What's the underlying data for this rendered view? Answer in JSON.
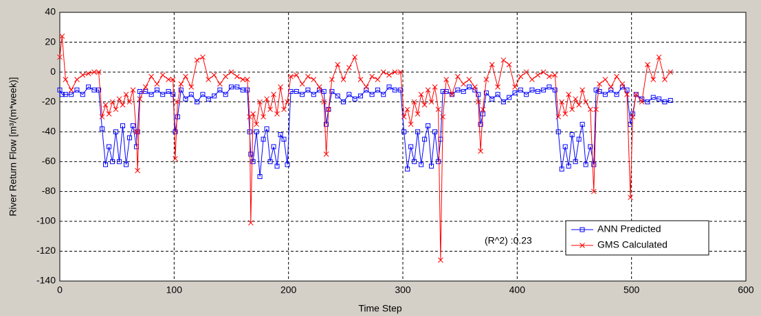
{
  "chart_data": {
    "type": "line",
    "x_label": "Time Step",
    "y_label": "River Return Flow [m³/(m*week)]",
    "annotation": "(R^2) :0.23",
    "xlim": [
      0,
      600
    ],
    "xticks": [
      0,
      100,
      200,
      300,
      400,
      500,
      600
    ],
    "ylim": [
      -140,
      40
    ],
    "yticks": [
      -140,
      -120,
      -100,
      -80,
      -60,
      -40,
      -20,
      0,
      20,
      40
    ],
    "grid": true,
    "legend": "lower right",
    "x": [
      0,
      2,
      5,
      10,
      15,
      20,
      25,
      30,
      34,
      37,
      40,
      43,
      46,
      49,
      52,
      55,
      58,
      61,
      64,
      67,
      68,
      70,
      75,
      80,
      85,
      90,
      95,
      99,
      101,
      103,
      106,
      110,
      115,
      120,
      125,
      130,
      135,
      140,
      145,
      150,
      155,
      160,
      164,
      166,
      167,
      169,
      172,
      175,
      178,
      181,
      184,
      187,
      190,
      193,
      196,
      199,
      202,
      207,
      212,
      217,
      222,
      227,
      231,
      233,
      235,
      238,
      243,
      248,
      253,
      258,
      263,
      268,
      273,
      278,
      283,
      288,
      293,
      298,
      301,
      304,
      307,
      310,
      313,
      316,
      319,
      322,
      325,
      328,
      331,
      333,
      335,
      338,
      343,
      348,
      353,
      358,
      363,
      366,
      368,
      370,
      373,
      378,
      383,
      388,
      393,
      398,
      403,
      408,
      413,
      418,
      423,
      428,
      433,
      436,
      439,
      442,
      445,
      448,
      451,
      454,
      457,
      460,
      464,
      467,
      469,
      472,
      477,
      482,
      487,
      492,
      496,
      499,
      501,
      504,
      509,
      514,
      519,
      524,
      529,
      534
    ],
    "series": [
      {
        "name": "ANN Predicted",
        "color": "#0000ff",
        "marker": "square",
        "values": [
          -12,
          -15,
          -15,
          -15,
          -12,
          -15,
          -10,
          -12,
          -12,
          -38,
          -62,
          -50,
          -60,
          -40,
          -60,
          -36,
          -62,
          -44,
          -36,
          -50,
          -40,
          -13,
          -13,
          -15,
          -12,
          -15,
          -13,
          -15,
          -40,
          -30,
          -12,
          -18,
          -15,
          -20,
          -15,
          -18,
          -16,
          -12,
          -15,
          -10,
          -10,
          -12,
          -12,
          -40,
          -55,
          -60,
          -40,
          -70,
          -45,
          -38,
          -60,
          -50,
          -63,
          -42,
          -45,
          -62,
          -13,
          -13,
          -15,
          -12,
          -15,
          -12,
          -13,
          -35,
          -25,
          -13,
          -16,
          -20,
          -15,
          -18,
          -16,
          -12,
          -15,
          -12,
          -15,
          -10,
          -12,
          -12,
          -40,
          -65,
          -50,
          -60,
          -40,
          -62,
          -45,
          -36,
          -63,
          -40,
          -60,
          -45,
          -13,
          -13,
          -15,
          -12,
          -13,
          -10,
          -12,
          -15,
          -35,
          -28,
          -14,
          -18,
          -15,
          -20,
          -17,
          -14,
          -12,
          -15,
          -12,
          -13,
          -12,
          -10,
          -12,
          -40,
          -65,
          -50,
          -63,
          -42,
          -60,
          -45,
          -35,
          -62,
          -50,
          -62,
          -12,
          -13,
          -15,
          -12,
          -15,
          -10,
          -12,
          -35,
          -28,
          -15,
          -18,
          -20,
          -17,
          -18,
          -20,
          -19
        ]
      },
      {
        "name": "GMS Calculated",
        "color": "#ff0000",
        "marker": "x",
        "values": [
          10,
          24,
          -5,
          -12,
          -5,
          -2,
          -1,
          0,
          0,
          -30,
          -22,
          -28,
          -20,
          -25,
          -18,
          -22,
          -15,
          -20,
          -12,
          -40,
          -66,
          -18,
          -10,
          -3,
          -8,
          -2,
          -5,
          -5,
          -58,
          -20,
          -8,
          -3,
          -10,
          8,
          10,
          -5,
          -2,
          -8,
          -3,
          0,
          -3,
          -5,
          -5,
          -30,
          -101,
          -28,
          -35,
          -20,
          -30,
          -18,
          -25,
          -15,
          -28,
          -10,
          -25,
          -20,
          -3,
          -2,
          -8,
          -3,
          -5,
          -10,
          -20,
          -55,
          -25,
          -5,
          5,
          -5,
          3,
          10,
          -5,
          -10,
          -3,
          -5,
          0,
          -2,
          0,
          0,
          -30,
          -25,
          -35,
          -20,
          -28,
          -15,
          -22,
          -12,
          -20,
          -10,
          -25,
          -126,
          -30,
          -5,
          -15,
          -3,
          -8,
          -5,
          -10,
          -20,
          -53,
          -25,
          -5,
          5,
          -10,
          8,
          5,
          -10,
          -3,
          0,
          -5,
          -2,
          0,
          -3,
          -2,
          -30,
          -20,
          -28,
          -15,
          -25,
          -18,
          -22,
          -12,
          -20,
          -25,
          -80,
          -25,
          -8,
          -5,
          -10,
          -3,
          -8,
          -15,
          -84,
          -30,
          -15,
          -20,
          5,
          -5,
          10,
          -5,
          0
        ]
      }
    ]
  }
}
